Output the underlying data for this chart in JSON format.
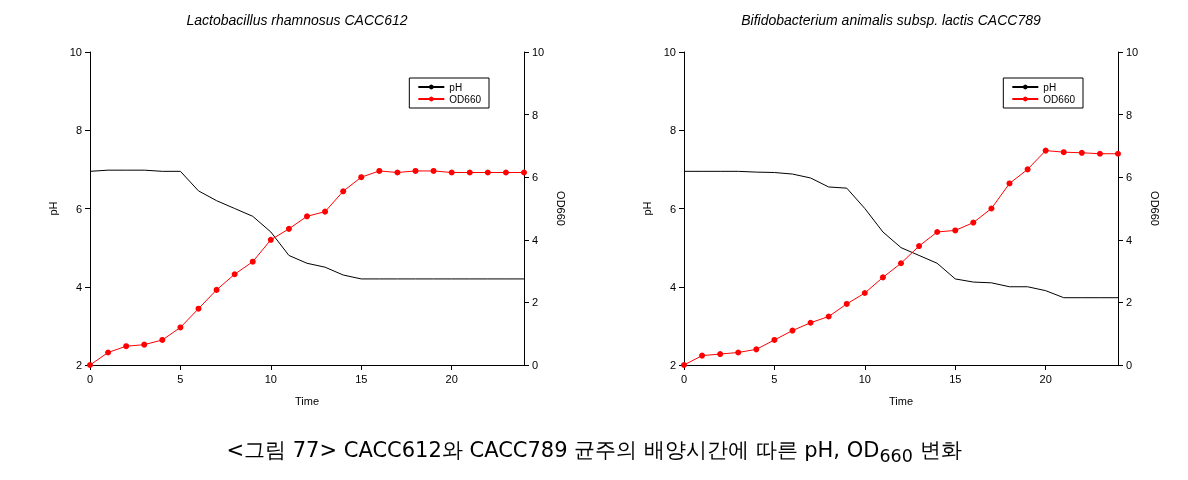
{
  "chart_data": [
    {
      "type": "line",
      "title": "Lactobacillus rhamnosus CACC612",
      "xlabel": "Time",
      "ylabel": "pH",
      "y2label": "OD660",
      "x": [
        0,
        1,
        2,
        3,
        4,
        5,
        6,
        7,
        8,
        9,
        10,
        11,
        12,
        13,
        14,
        15,
        16,
        17,
        18,
        19,
        20,
        21,
        22,
        23,
        24
      ],
      "xlim": [
        0,
        24
      ],
      "xticks": [
        0,
        5,
        10,
        15,
        20
      ],
      "ylim": [
        2,
        10
      ],
      "yticks": [
        2,
        4,
        6,
        8,
        10
      ],
      "y2lim": [
        0,
        10
      ],
      "y2ticks": [
        0,
        2,
        4,
        6,
        8,
        10
      ],
      "legend": "top right",
      "grid": false,
      "annotations": [
        "<그림 77> CACC612와 CACC789 균주의 배양시간에 따른 pH, OD$_{660}$ 변화"
      ],
      "series": [
        {
          "name": "pH",
          "color": "#000000",
          "marker": "none",
          "values": [
            6.95,
            6.98,
            6.98,
            6.98,
            6.95,
            6.95,
            6.45,
            6.2,
            6.0,
            5.8,
            5.4,
            4.8,
            4.6,
            4.5,
            4.3,
            4.2,
            4.2,
            4.2,
            4.2,
            4.2,
            4.2,
            4.2,
            4.2,
            4.2,
            4.2
          ]
        },
        {
          "name": "OD660",
          "color": "#ff0000",
          "marker": "circle",
          "axis": "y2",
          "values": [
            0,
            0.4,
            0.6,
            0.65,
            0.8,
            1.2,
            1.8,
            2.4,
            2.9,
            3.3,
            4.0,
            4.35,
            4.75,
            4.9,
            5.55,
            6.0,
            6.2,
            6.15,
            6.2,
            6.2,
            6.15,
            6.15,
            6.15,
            6.15,
            6.15
          ]
        }
      ]
    },
    {
      "type": "line",
      "title": "Bifidobacterium animalis subsp. lactis CACC789",
      "xlabel": "Time",
      "ylabel": "pH",
      "y2label": "OD660",
      "x": [
        0,
        1,
        2,
        3,
        4,
        5,
        6,
        7,
        8,
        9,
        10,
        11,
        12,
        13,
        14,
        15,
        16,
        17,
        18,
        19,
        20,
        21,
        22,
        23,
        24
      ],
      "xlim": [
        0,
        24
      ],
      "xticks": [
        0,
        5,
        10,
        15,
        20
      ],
      "ylim": [
        2,
        10
      ],
      "yticks": [
        2,
        4,
        6,
        8,
        10
      ],
      "y2lim": [
        0,
        10
      ],
      "y2ticks": [
        0,
        2,
        4,
        6,
        8,
        10
      ],
      "legend": "top right",
      "grid": false,
      "series": [
        {
          "name": "pH",
          "color": "#000000",
          "marker": "none",
          "values": [
            6.95,
            6.95,
            6.95,
            6.95,
            6.93,
            6.92,
            6.88,
            6.78,
            6.55,
            6.52,
            6.0,
            5.4,
            5.0,
            4.8,
            4.6,
            4.2,
            4.12,
            4.1,
            4.0,
            4.0,
            3.9,
            3.72,
            3.72,
            3.72,
            3.72
          ]
        },
        {
          "name": "OD660",
          "color": "#ff0000",
          "marker": "circle",
          "axis": "y2",
          "values": [
            0,
            0.3,
            0.35,
            0.4,
            0.5,
            0.8,
            1.1,
            1.35,
            1.55,
            1.95,
            2.3,
            2.8,
            3.25,
            3.8,
            4.25,
            4.3,
            4.55,
            5.0,
            5.8,
            6.25,
            6.85,
            6.8,
            6.78,
            6.75,
            6.75
          ]
        }
      ]
    }
  ]
}
